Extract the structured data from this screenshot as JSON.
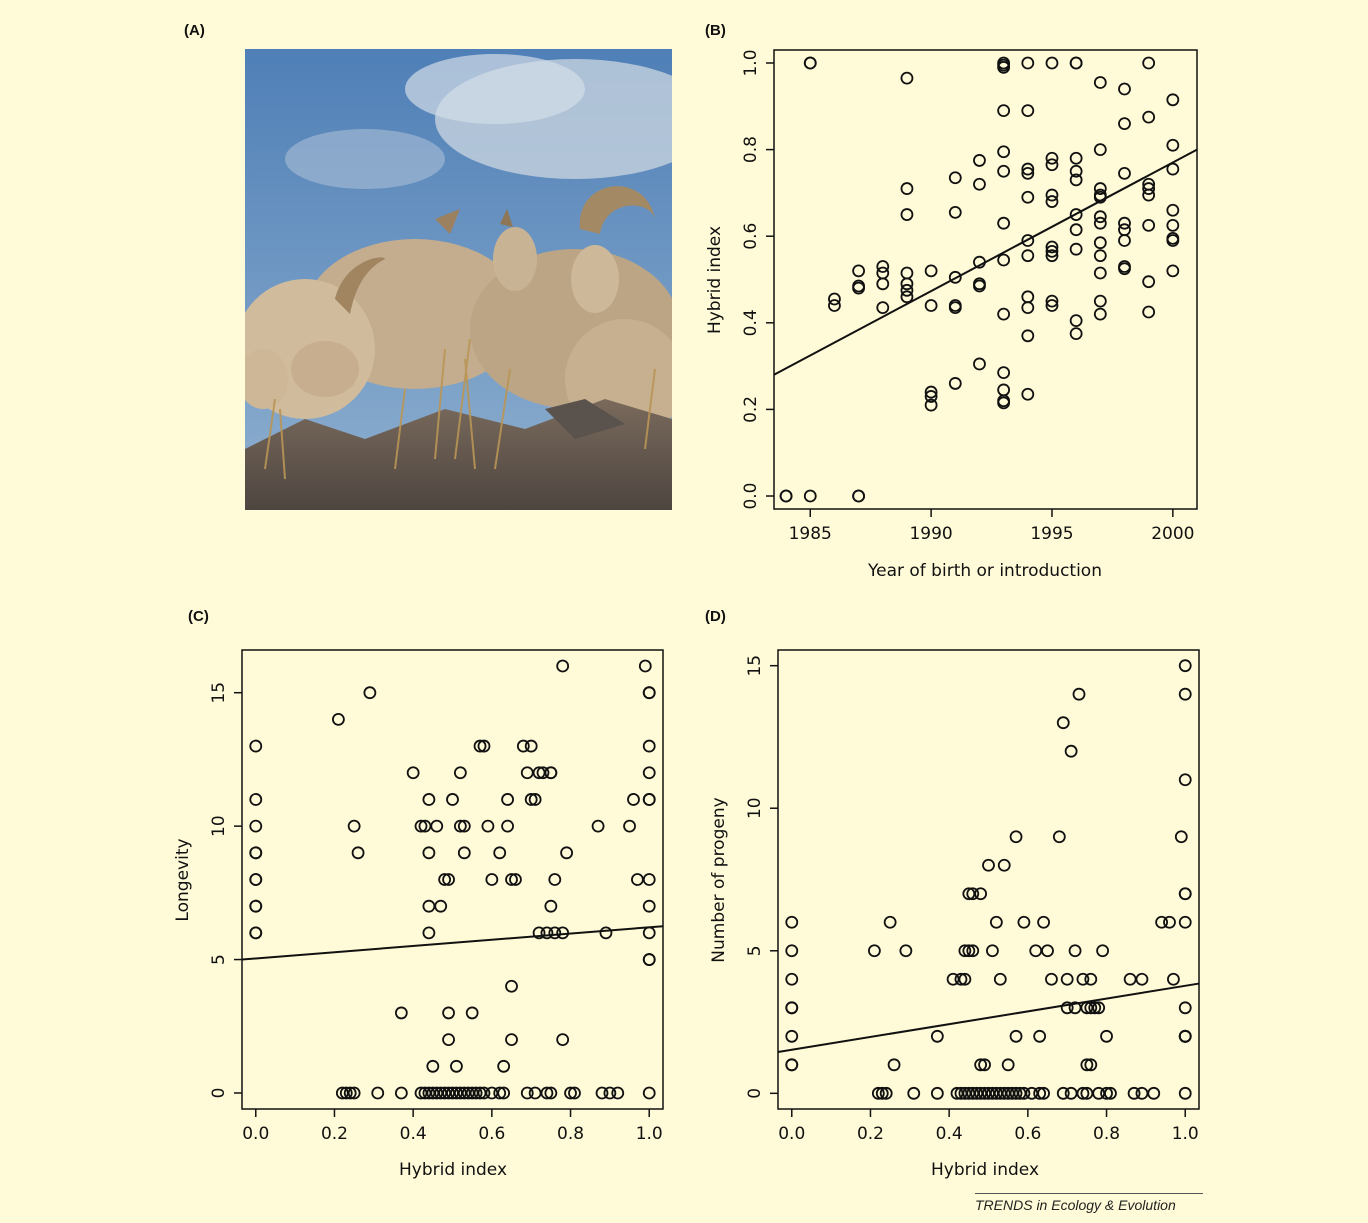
{
  "panel_labels": {
    "a": "(A)",
    "b": "(B)",
    "c": "(C)",
    "d": "(D)"
  },
  "footer": "TRENDS in Ecology & Evolution",
  "photo": {
    "subject": "bighorn sheep group on rocky ridge",
    "sky": "#6f9ac8",
    "cloud": "#cdd8e4",
    "fur": "#c9b394",
    "rock": "#6a5f56",
    "grass": "#b38f54"
  },
  "chart_data": [
    {
      "type": "scatter",
      "panel": "B",
      "xlabel": "Year of birth or introduction",
      "ylabel": "Hybrid index",
      "xlim": [
        1983.5,
        2001
      ],
      "ylim": [
        -0.03,
        1.03
      ],
      "xticks": [
        "1985",
        "1990",
        "1995",
        "2000"
      ],
      "yticks": [
        "0.0",
        "0.2",
        "0.4",
        "0.6",
        "0.8",
        "1.0"
      ],
      "fit_line": {
        "x": [
          1983.5,
          2001
        ],
        "y": [
          0.28,
          0.8
        ]
      },
      "points": [
        [
          1984,
          0
        ],
        [
          1984,
          0
        ],
        [
          1985,
          0
        ],
        [
          1987,
          0
        ],
        [
          1987,
          0
        ],
        [
          1985,
          1
        ],
        [
          1985,
          1
        ],
        [
          1986,
          0.44
        ],
        [
          1986,
          0.455
        ],
        [
          1987,
          0.48
        ],
        [
          1987,
          0.485
        ],
        [
          1987,
          0.52
        ],
        [
          1988,
          0.435
        ],
        [
          1988,
          0.49
        ],
        [
          1988,
          0.515
        ],
        [
          1988,
          0.53
        ],
        [
          1989,
          0.965
        ],
        [
          1989,
          0.71
        ],
        [
          1989,
          0.65
        ],
        [
          1989,
          0.515
        ],
        [
          1989,
          0.49
        ],
        [
          1989,
          0.475
        ],
        [
          1989,
          0.46
        ],
        [
          1990,
          0.52
        ],
        [
          1990,
          0.44
        ],
        [
          1990,
          0.24
        ],
        [
          1990,
          0.23
        ],
        [
          1990,
          0.21
        ],
        [
          1991,
          0.735
        ],
        [
          1991,
          0.655
        ],
        [
          1991,
          0.505
        ],
        [
          1991,
          0.44
        ],
        [
          1991,
          0.435
        ],
        [
          1991,
          0.26
        ],
        [
          1992,
          0.775
        ],
        [
          1992,
          0.72
        ],
        [
          1992,
          0.54
        ],
        [
          1992,
          0.49
        ],
        [
          1992,
          0.485
        ],
        [
          1992,
          0.305
        ],
        [
          1993,
          1
        ],
        [
          1993,
          0.995
        ],
        [
          1993,
          0.99
        ],
        [
          1993,
          0.89
        ],
        [
          1993,
          0.795
        ],
        [
          1993,
          0.75
        ],
        [
          1993,
          0.63
        ],
        [
          1993,
          0.545
        ],
        [
          1993,
          0.42
        ],
        [
          1993,
          0.285
        ],
        [
          1993,
          0.245
        ],
        [
          1993,
          0.22
        ],
        [
          1993,
          0.215
        ],
        [
          1994,
          1
        ],
        [
          1994,
          0.89
        ],
        [
          1994,
          0.755
        ],
        [
          1994,
          0.745
        ],
        [
          1994,
          0.69
        ],
        [
          1994,
          0.59
        ],
        [
          1994,
          0.555
        ],
        [
          1994,
          0.46
        ],
        [
          1994,
          0.435
        ],
        [
          1994,
          0.37
        ],
        [
          1994,
          0.235
        ],
        [
          1995,
          1
        ],
        [
          1995,
          0.78
        ],
        [
          1995,
          0.765
        ],
        [
          1995,
          0.695
        ],
        [
          1995,
          0.68
        ],
        [
          1995,
          0.575
        ],
        [
          1995,
          0.565
        ],
        [
          1995,
          0.555
        ],
        [
          1995,
          0.45
        ],
        [
          1995,
          0.44
        ],
        [
          1996,
          1
        ],
        [
          1996,
          1
        ],
        [
          1996,
          0.78
        ],
        [
          1996,
          0.75
        ],
        [
          1996,
          0.73
        ],
        [
          1996,
          0.65
        ],
        [
          1996,
          0.615
        ],
        [
          1996,
          0.57
        ],
        [
          1996,
          0.405
        ],
        [
          1996,
          0.375
        ],
        [
          1997,
          0.955
        ],
        [
          1997,
          0.8
        ],
        [
          1997,
          0.71
        ],
        [
          1997,
          0.695
        ],
        [
          1997,
          0.69
        ],
        [
          1997,
          0.645
        ],
        [
          1997,
          0.63
        ],
        [
          1997,
          0.585
        ],
        [
          1997,
          0.555
        ],
        [
          1997,
          0.515
        ],
        [
          1997,
          0.45
        ],
        [
          1997,
          0.42
        ],
        [
          1998,
          0.94
        ],
        [
          1998,
          0.86
        ],
        [
          1998,
          0.745
        ],
        [
          1998,
          0.63
        ],
        [
          1998,
          0.615
        ],
        [
          1998,
          0.59
        ],
        [
          1998,
          0.53
        ],
        [
          1998,
          0.525
        ],
        [
          1999,
          1
        ],
        [
          1999,
          0.875
        ],
        [
          1999,
          0.72
        ],
        [
          1999,
          0.71
        ],
        [
          1999,
          0.695
        ],
        [
          1999,
          0.625
        ],
        [
          1999,
          0.495
        ],
        [
          1999,
          0.425
        ],
        [
          2000,
          0.915
        ],
        [
          2000,
          0.81
        ],
        [
          2000,
          0.755
        ],
        [
          2000,
          0.66
        ],
        [
          2000,
          0.625
        ],
        [
          2000,
          0.595
        ],
        [
          2000,
          0.59
        ],
        [
          2000,
          0.52
        ]
      ]
    },
    {
      "type": "scatter",
      "panel": "C",
      "xlabel": "Hybrid index",
      "ylabel": "Longevity",
      "xlim": [
        -0.035,
        1.035
      ],
      "ylim": [
        -0.6,
        16.6
      ],
      "xticks": [
        "0.0",
        "0.2",
        "0.4",
        "0.6",
        "0.8",
        "1.0"
      ],
      "yticks": [
        "0",
        "5",
        "10",
        "15"
      ],
      "fit_line": {
        "x": [
          -0.035,
          1.035
        ],
        "y": [
          5.0,
          6.25
        ]
      },
      "points": [
        [
          0,
          13
        ],
        [
          0,
          11
        ],
        [
          0,
          10
        ],
        [
          0,
          9
        ],
        [
          0,
          9
        ],
        [
          0,
          8
        ],
        [
          0,
          8
        ],
        [
          0,
          7
        ],
        [
          0,
          7
        ],
        [
          0,
          6
        ],
        [
          0,
          6
        ],
        [
          0.21,
          14
        ],
        [
          0.22,
          0
        ],
        [
          0.23,
          0
        ],
        [
          0.24,
          0
        ],
        [
          0.25,
          0
        ],
        [
          0.25,
          10
        ],
        [
          0.26,
          9
        ],
        [
          0.29,
          15
        ],
        [
          0.31,
          0
        ],
        [
          0.37,
          3
        ],
        [
          0.37,
          0
        ],
        [
          0.4,
          12
        ],
        [
          0.42,
          10
        ],
        [
          0.43,
          10
        ],
        [
          0.44,
          11
        ],
        [
          0.44,
          9
        ],
        [
          0.44,
          7
        ],
        [
          0.44,
          6
        ],
        [
          0.45,
          1
        ],
        [
          0.46,
          10
        ],
        [
          0.47,
          7
        ],
        [
          0.48,
          8
        ],
        [
          0.49,
          8
        ],
        [
          0.49,
          3
        ],
        [
          0.49,
          2
        ],
        [
          0.5,
          11
        ],
        [
          0.51,
          1
        ],
        [
          0.52,
          12
        ],
        [
          0.52,
          10
        ],
        [
          0.53,
          10
        ],
        [
          0.53,
          9
        ],
        [
          0.55,
          3
        ],
        [
          0.57,
          13
        ],
        [
          0.58,
          13
        ],
        [
          0.59,
          10
        ],
        [
          0.6,
          8
        ],
        [
          0.62,
          9
        ],
        [
          0.63,
          1
        ],
        [
          0.64,
          10
        ],
        [
          0.64,
          11
        ],
        [
          0.65,
          8
        ],
        [
          0.65,
          2
        ],
        [
          0.65,
          4
        ],
        [
          0.66,
          8
        ],
        [
          0.68,
          13
        ],
        [
          0.69,
          12
        ],
        [
          0.7,
          13
        ],
        [
          0.7,
          11
        ],
        [
          0.71,
          11
        ],
        [
          0.72,
          12
        ],
        [
          0.72,
          6
        ],
        [
          0.73,
          12
        ],
        [
          0.74,
          6
        ],
        [
          0.75,
          12
        ],
        [
          0.75,
          12
        ],
        [
          0.75,
          7
        ],
        [
          0.76,
          8
        ],
        [
          0.76,
          6
        ],
        [
          0.78,
          16
        ],
        [
          0.78,
          6
        ],
        [
          0.79,
          9
        ],
        [
          0.78,
          2
        ],
        [
          0.87,
          10
        ],
        [
          0.89,
          6
        ],
        [
          0.95,
          10
        ],
        [
          0.96,
          11
        ],
        [
          0.97,
          8
        ],
        [
          0.99,
          16
        ],
        [
          1,
          15
        ],
        [
          1,
          15
        ],
        [
          1,
          13
        ],
        [
          1,
          12
        ],
        [
          1,
          11
        ],
        [
          1,
          11
        ],
        [
          1,
          8
        ],
        [
          1,
          7
        ],
        [
          1,
          6
        ],
        [
          1,
          5
        ],
        [
          1,
          5
        ],
        [
          1,
          0
        ],
        [
          0.42,
          0
        ],
        [
          0.43,
          0
        ],
        [
          0.44,
          0
        ],
        [
          0.45,
          0
        ],
        [
          0.46,
          0
        ],
        [
          0.47,
          0
        ],
        [
          0.48,
          0
        ],
        [
          0.49,
          0
        ],
        [
          0.5,
          0
        ],
        [
          0.51,
          0
        ],
        [
          0.52,
          0
        ],
        [
          0.53,
          0
        ],
        [
          0.54,
          0
        ],
        [
          0.55,
          0
        ],
        [
          0.56,
          0
        ],
        [
          0.57,
          0
        ],
        [
          0.58,
          0
        ],
        [
          0.6,
          0
        ],
        [
          0.62,
          0
        ],
        [
          0.63,
          0
        ],
        [
          0.69,
          0
        ],
        [
          0.71,
          0
        ],
        [
          0.74,
          0
        ],
        [
          0.75,
          0
        ],
        [
          0.8,
          0
        ],
        [
          0.81,
          0
        ],
        [
          0.88,
          0
        ],
        [
          0.9,
          0
        ],
        [
          0.92,
          0
        ]
      ]
    },
    {
      "type": "scatter",
      "panel": "D",
      "xlabel": "Hybrid index",
      "ylabel": "Number of progeny",
      "xlim": [
        -0.035,
        1.035
      ],
      "ylim": [
        -0.55,
        15.55
      ],
      "xticks": [
        "0.0",
        "0.2",
        "0.4",
        "0.6",
        "0.8",
        "1.0"
      ],
      "yticks": [
        "0",
        "5",
        "10",
        "15"
      ],
      "fit_line": {
        "x": [
          -0.035,
          1.035
        ],
        "y": [
          1.45,
          3.85
        ]
      },
      "points": [
        [
          0,
          6
        ],
        [
          0,
          5
        ],
        [
          0,
          4
        ],
        [
          0,
          3
        ],
        [
          0,
          3
        ],
        [
          0,
          2
        ],
        [
          0,
          1
        ],
        [
          0,
          1
        ],
        [
          0.21,
          5
        ],
        [
          0.22,
          0
        ],
        [
          0.23,
          0
        ],
        [
          0.24,
          0
        ],
        [
          0.25,
          6
        ],
        [
          0.26,
          1
        ],
        [
          0.29,
          5
        ],
        [
          0.31,
          0
        ],
        [
          0.37,
          2
        ],
        [
          0.37,
          0
        ],
        [
          0.41,
          4
        ],
        [
          0.43,
          4
        ],
        [
          0.44,
          5
        ],
        [
          0.45,
          5
        ],
        [
          0.44,
          4
        ],
        [
          0.45,
          7
        ],
        [
          0.46,
          7
        ],
        [
          0.48,
          7
        ],
        [
          0.46,
          5
        ],
        [
          0.48,
          1
        ],
        [
          0.49,
          1
        ],
        [
          0.5,
          8
        ],
        [
          0.51,
          5
        ],
        [
          0.52,
          6
        ],
        [
          0.53,
          4
        ],
        [
          0.54,
          8
        ],
        [
          0.55,
          1
        ],
        [
          0.57,
          2
        ],
        [
          0.57,
          9
        ],
        [
          0.59,
          6
        ],
        [
          0.62,
          5
        ],
        [
          0.63,
          2
        ],
        [
          0.64,
          6
        ],
        [
          0.65,
          5
        ],
        [
          0.66,
          4
        ],
        [
          0.68,
          9
        ],
        [
          0.69,
          13
        ],
        [
          0.7,
          3
        ],
        [
          0.7,
          4
        ],
        [
          0.71,
          12
        ],
        [
          0.72,
          3
        ],
        [
          0.72,
          5
        ],
        [
          0.73,
          14
        ],
        [
          0.74,
          4
        ],
        [
          0.75,
          3
        ],
        [
          0.76,
          4
        ],
        [
          0.76,
          3
        ],
        [
          0.75,
          1
        ],
        [
          0.76,
          1
        ],
        [
          0.77,
          3
        ],
        [
          0.78,
          3
        ],
        [
          0.79,
          5
        ],
        [
          0.8,
          2
        ],
        [
          0.86,
          4
        ],
        [
          0.89,
          4
        ],
        [
          0.94,
          6
        ],
        [
          0.96,
          6
        ],
        [
          0.97,
          4
        ],
        [
          0.99,
          9
        ],
        [
          1,
          15
        ],
        [
          1,
          14
        ],
        [
          1,
          11
        ],
        [
          1,
          7
        ],
        [
          1,
          7
        ],
        [
          1,
          6
        ],
        [
          1,
          3
        ],
        [
          1,
          2
        ],
        [
          1,
          2
        ],
        [
          1,
          2
        ],
        [
          1,
          0
        ],
        [
          0.42,
          0
        ],
        [
          0.43,
          0
        ],
        [
          0.44,
          0
        ],
        [
          0.45,
          0
        ],
        [
          0.46,
          0
        ],
        [
          0.47,
          0
        ],
        [
          0.48,
          0
        ],
        [
          0.49,
          0
        ],
        [
          0.5,
          0
        ],
        [
          0.51,
          0
        ],
        [
          0.52,
          0
        ],
        [
          0.53,
          0
        ],
        [
          0.54,
          0
        ],
        [
          0.55,
          0
        ],
        [
          0.56,
          0
        ],
        [
          0.57,
          0
        ],
        [
          0.58,
          0
        ],
        [
          0.59,
          0
        ],
        [
          0.61,
          0
        ],
        [
          0.63,
          0
        ],
        [
          0.64,
          0
        ],
        [
          0.69,
          0
        ],
        [
          0.71,
          0
        ],
        [
          0.74,
          0
        ],
        [
          0.75,
          0
        ],
        [
          0.78,
          0
        ],
        [
          0.8,
          0
        ],
        [
          0.81,
          0
        ],
        [
          0.87,
          0
        ],
        [
          0.89,
          0
        ],
        [
          0.92,
          0
        ]
      ]
    }
  ]
}
